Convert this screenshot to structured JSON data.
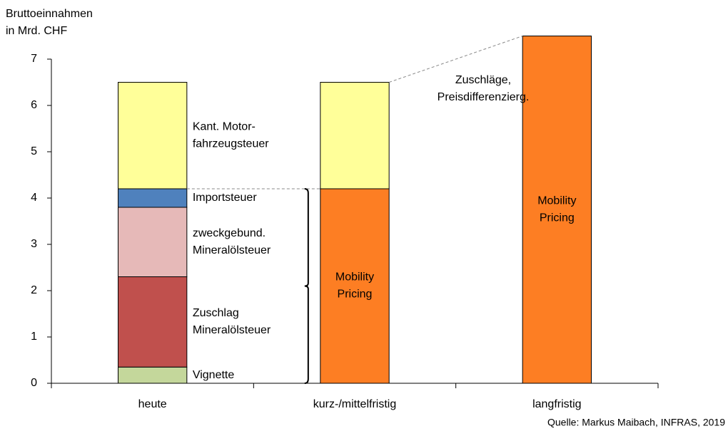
{
  "chart_data": {
    "type": "stacked_bar",
    "y_label": "Bruttoeinnahmen\nin Mrd. CHF",
    "annotation": "Zuschläge,\nPreisdifferenzierg.",
    "source": "Quelle: Markus Maibach, INFRAS, 2019",
    "categories": [
      "heute",
      "kurz-/mittelfristig",
      "langfristig"
    ],
    "series": [
      {
        "name": "Vignette",
        "color": "#c4d79b",
        "values": [
          0.35,
          null,
          null
        ]
      },
      {
        "name": "Zuschlag\nMineralölsteuer",
        "color": "#c0504d",
        "values": [
          1.95,
          null,
          null
        ]
      },
      {
        "name": "zweckgebund.\nMineralölsteuer",
        "color": "#e6b9b8",
        "values": [
          1.5,
          null,
          null
        ]
      },
      {
        "name": "Importsteuer",
        "color": "#4f81bd",
        "values": [
          0.4,
          null,
          null
        ]
      },
      {
        "name": "Mobility\nPricing",
        "color": "#fd7e23",
        "values": [
          null,
          4.2,
          7.5
        ]
      },
      {
        "name": "Kant. Motor-\nfahrzeugsteuer",
        "color": "#ffff99",
        "values": [
          2.3,
          2.3,
          null
        ]
      }
    ],
    "ylim": [
      0,
      7
    ],
    "yticks": [
      0,
      1,
      2,
      3,
      4,
      5,
      6,
      7
    ]
  }
}
